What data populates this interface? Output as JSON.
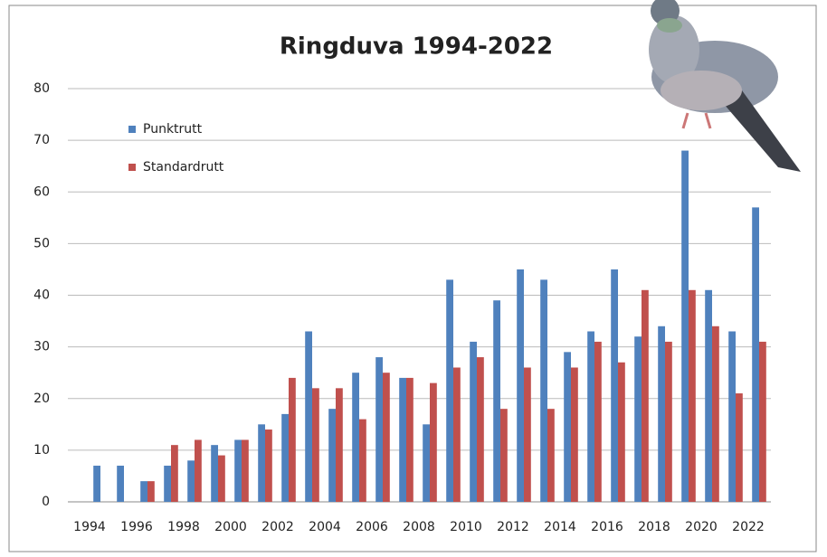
{
  "chart_data": {
    "type": "bar",
    "title": "Ringduva 1994-2022",
    "categories": [
      "1994",
      null,
      "1996",
      null,
      "1998",
      null,
      "2000",
      null,
      "2002",
      null,
      "2004",
      null,
      "2006",
      null,
      "2008",
      null,
      "2010",
      null,
      "2012",
      null,
      "2014",
      null,
      "2016",
      null,
      "2018",
      null,
      "2020",
      null,
      "2022"
    ],
    "series": [
      {
        "name": "Punktrutt",
        "color": "#4f81bd",
        "values": [
          7,
          7,
          4,
          7,
          8,
          11,
          12,
          15,
          17,
          33,
          18,
          25,
          28,
          24,
          15,
          43,
          31,
          39,
          45,
          43,
          29,
          33,
          45,
          32,
          34,
          68,
          41,
          33,
          57
        ]
      },
      {
        "name": "Standardrutt",
        "color": "#c0504d",
        "values": [
          null,
          null,
          4,
          11,
          12,
          9,
          12,
          14,
          24,
          22,
          22,
          16,
          25,
          24,
          23,
          26,
          28,
          18,
          26,
          18,
          26,
          31,
          27,
          41,
          31,
          41,
          34,
          21,
          31
        ]
      }
    ],
    "ylim": [
      0,
      80
    ],
    "yticks": [
      0,
      10,
      20,
      30,
      40,
      50,
      60,
      70,
      80
    ],
    "grid": true,
    "legend": "upper left"
  }
}
